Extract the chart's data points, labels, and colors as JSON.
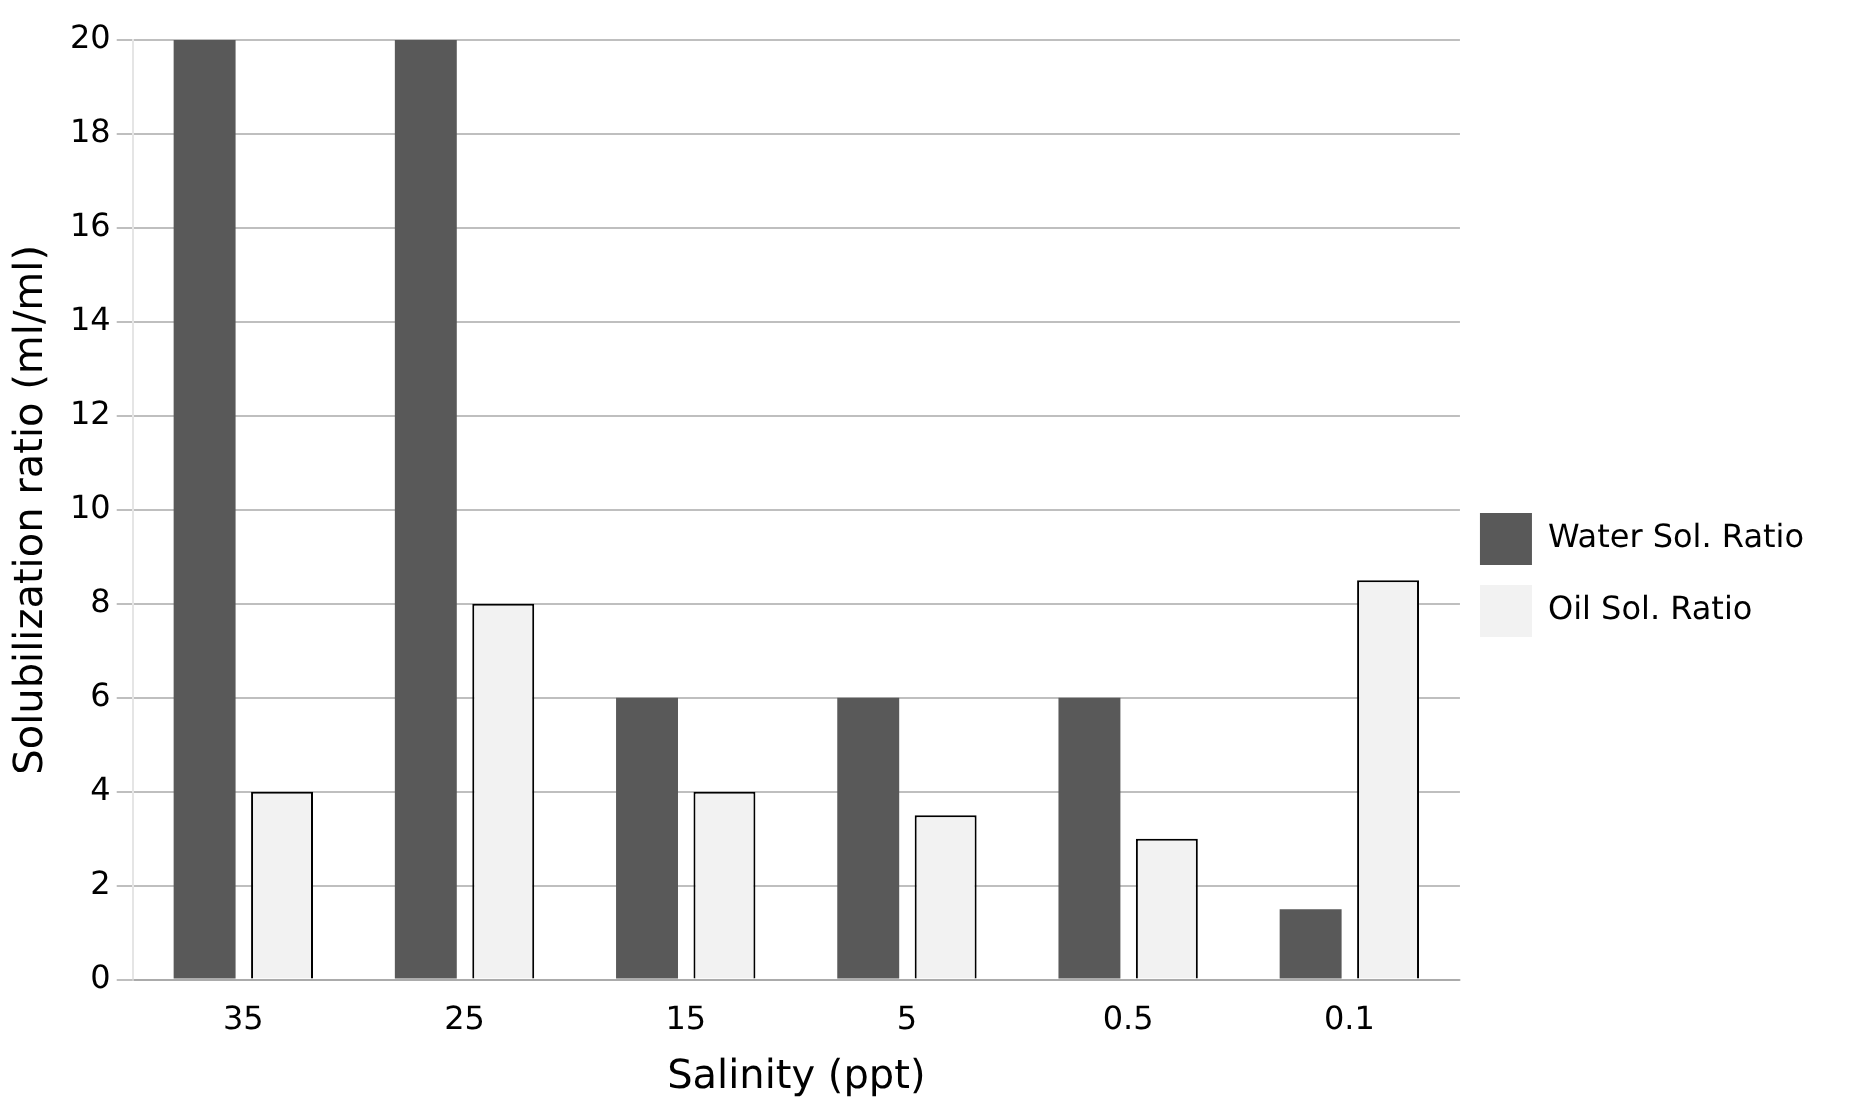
{
  "chart_data": {
    "type": "bar",
    "xlabel": "Salinity (ppt)",
    "ylabel": "Solubilization ratio (ml/ml)",
    "categories": [
      "35",
      "25",
      "15",
      "5",
      "0.5",
      "0.1"
    ],
    "series": [
      {
        "name": "Water Sol. Ratio",
        "color": "#595959",
        "values": [
          20,
          20,
          6,
          6,
          6,
          1.5
        ]
      },
      {
        "name": "Oil Sol. Ratio",
        "color": "#f2f2f2",
        "values": [
          4,
          8,
          4,
          3.5,
          3,
          8.5
        ]
      }
    ],
    "ylim": [
      0,
      20
    ],
    "yticks": [
      0,
      2,
      4,
      6,
      8,
      10,
      12,
      14,
      16,
      18,
      20
    ],
    "grid": "y",
    "legend": "right"
  }
}
